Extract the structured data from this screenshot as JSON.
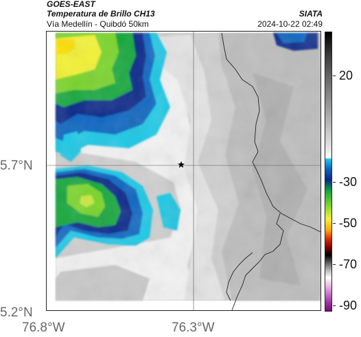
{
  "header": {
    "satellite": "GOES-EAST",
    "product": "Temperatura de Brillo CH13",
    "region": "Vía Medellín - Quibdó 50km",
    "organization": "SIATA",
    "timestamp": "2024-10-22 02:49"
  },
  "map": {
    "lat_labels": [
      "5.7°N",
      "5.2°N"
    ],
    "lon_labels": [
      "76.8°W",
      "76.3°W"
    ],
    "marker": "star-icon"
  },
  "colorbar": {
    "labels": [
      "20",
      "-30",
      "-50",
      "-70",
      "-90"
    ]
  }
}
